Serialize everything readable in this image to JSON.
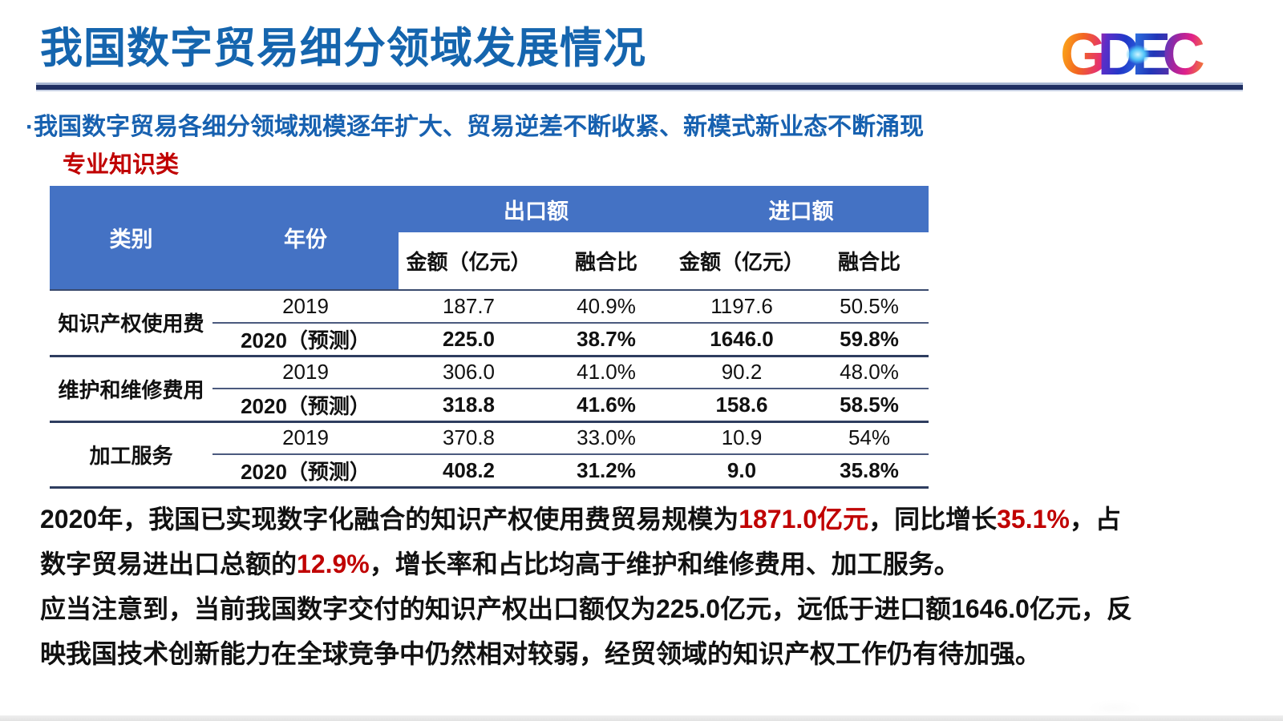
{
  "slide": {
    "title": "我国数字贸易细分领域发展情况",
    "bullet": "·我国数字贸易各细分领域规模逐年扩大、贸易逆差不断收紧、新模式新业态不断涌现",
    "section_label": "专业知识类"
  },
  "logo": {
    "letters": [
      "G",
      "D",
      "E",
      "C"
    ]
  },
  "colors": {
    "title_blue": "#1565AE",
    "bullet_blue": "#1761B0",
    "table_header_blue": "#4472C4",
    "accent_red": "#C00000",
    "rule_navy": "#1F2F63"
  },
  "table": {
    "headers": {
      "category": "类别",
      "year": "年份",
      "export_group": "出口额",
      "import_group": "进口额",
      "amount": "金额（亿元）",
      "ratio": "融合比"
    },
    "groups": [
      {
        "category": "知识产权使用费",
        "rows": [
          {
            "year": "2019",
            "export_amount": "187.7",
            "export_ratio": "40.9%",
            "import_amount": "1197.6",
            "import_ratio": "50.5%",
            "bold": false
          },
          {
            "year": "2020（预测）",
            "export_amount": "225.0",
            "export_ratio": "38.7%",
            "import_amount": "1646.0",
            "import_ratio": "59.8%",
            "bold": true
          }
        ]
      },
      {
        "category": "维护和维修费用",
        "rows": [
          {
            "year": "2019",
            "export_amount": "306.0",
            "export_ratio": "41.0%",
            "import_amount": "90.2",
            "import_ratio": "48.0%",
            "bold": false
          },
          {
            "year": "2020（预测）",
            "export_amount": "318.8",
            "export_ratio": "41.6%",
            "import_amount": "158.6",
            "import_ratio": "58.5%",
            "bold": true
          }
        ]
      },
      {
        "category": "加工服务",
        "rows": [
          {
            "year": "2019",
            "export_amount": "370.8",
            "export_ratio": "33.0%",
            "import_amount": "10.9",
            "import_ratio": "54%",
            "bold": false
          },
          {
            "year": "2020（预测）",
            "export_amount": "408.2",
            "export_ratio": "31.2%",
            "import_amount": "9.0",
            "import_ratio": "35.8%",
            "bold": true
          }
        ]
      }
    ]
  },
  "analysis": {
    "lines": [
      {
        "segments": [
          {
            "t": "2020年，我国已实现数字化融合的知识产权使用费贸易规模为",
            "red": false
          },
          {
            "t": "1871.0亿元",
            "red": true
          },
          {
            "t": "，同比增长",
            "red": false
          },
          {
            "t": "35.1%",
            "red": true
          },
          {
            "t": "，占",
            "red": false
          }
        ]
      },
      {
        "segments": [
          {
            "t": "数字贸易进出口总额的",
            "red": false
          },
          {
            "t": "12.9%",
            "red": true
          },
          {
            "t": "，增长率和占比均高于维护和维修费用、加工服务。",
            "red": false
          }
        ]
      },
      {
        "segments": [
          {
            "t": "应当注意到，当前我国数字交付的知识产权出口额仅为225.0亿元，远低于进口额1646.0亿元，反",
            "red": false
          }
        ]
      },
      {
        "segments": [
          {
            "t": "映我国技术创新能力在全球竞争中仍然相对较弱，经贸领域的知识产权工作仍有待加强。",
            "red": false
          }
        ]
      }
    ]
  }
}
